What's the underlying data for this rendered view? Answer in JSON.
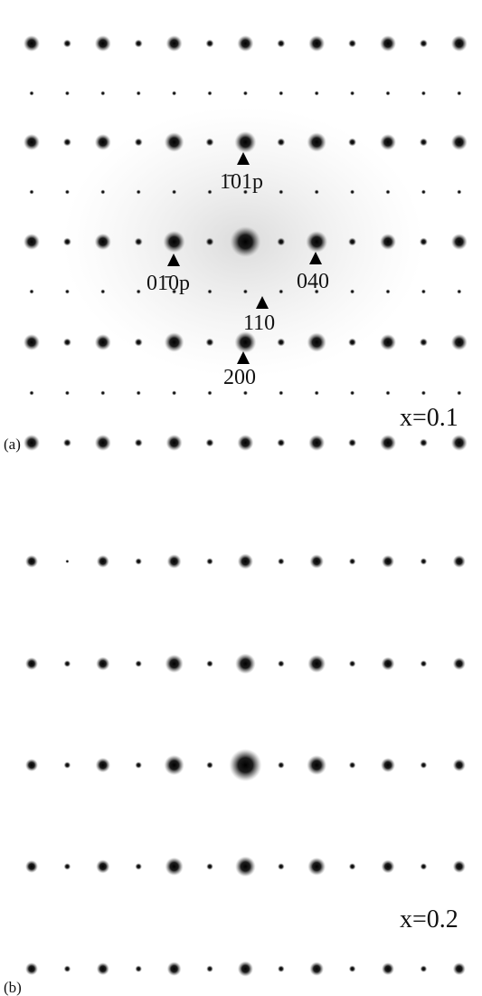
{
  "panels": [
    {
      "label": "(a)",
      "composition": "x=0.1",
      "annotations": [
        "1̄01p",
        "01̄0p",
        "040",
        "110",
        "200"
      ]
    },
    {
      "label": "(b)",
      "composition": "x=0.2"
    }
  ]
}
